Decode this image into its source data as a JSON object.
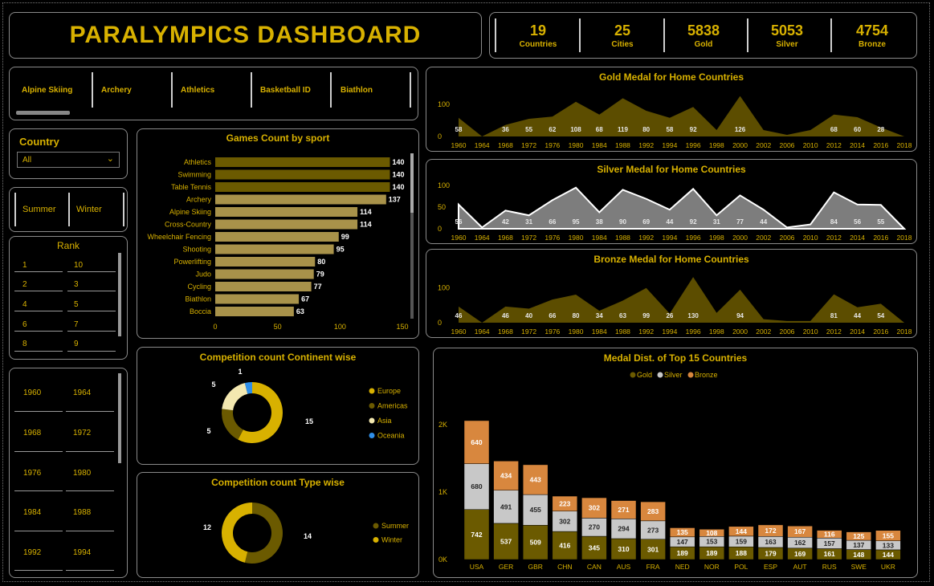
{
  "header": {
    "title": "PARALYMPICS DASHBOARD"
  },
  "kpis": [
    {
      "value": "19",
      "label": "Countries"
    },
    {
      "value": "25",
      "label": "Cities"
    },
    {
      "value": "5838",
      "label": "Gold"
    },
    {
      "value": "5053",
      "label": "Silver"
    },
    {
      "value": "4754",
      "label": "Bronze"
    }
  ],
  "sport_slicer": {
    "items": [
      "Alpine Skiing",
      "Archery",
      "Athletics",
      "Basketball ID",
      "Biathlon"
    ]
  },
  "country_filter": {
    "label": "Country",
    "selected": "All"
  },
  "season_slicer": {
    "items": [
      "Summer",
      "Winter"
    ]
  },
  "rank_slicer": {
    "title": "Rank",
    "items": [
      "1",
      "10",
      "2",
      "3",
      "4",
      "5",
      "6",
      "7",
      "8",
      "9"
    ]
  },
  "year_slicer": {
    "items": [
      "1960",
      "1964",
      "1968",
      "1972",
      "1976",
      "1980",
      "1984",
      "1988",
      "1992",
      "1994"
    ]
  },
  "colors": {
    "accent": "#d8b100",
    "gold_dark": "#6b5a00",
    "silver": "#c8c8c8",
    "bronze": "#d8873e",
    "oceania": "#2f8fe8",
    "asia": "#f3e8b0"
  },
  "chart_data": [
    {
      "id": "games_by_sport",
      "type": "bar",
      "orientation": "horizontal",
      "title": "Games Count by sport",
      "categories": [
        "Athletics",
        "Swimming",
        "Table Tennis",
        "Archery",
        "Alpine Skiing",
        "Cross-Country",
        "Wheelchair Fencing",
        "Shooting",
        "Powerlifting",
        "Judo",
        "Cycling",
        "Biathlon",
        "Boccia"
      ],
      "values": [
        140,
        140,
        140,
        137,
        114,
        114,
        99,
        95,
        80,
        79,
        77,
        67,
        63
      ],
      "xticks": [
        0,
        50,
        100,
        150
      ],
      "xlim": [
        0,
        150
      ]
    },
    {
      "id": "gold_home",
      "type": "area",
      "title": "Gold Medal for Home Countries",
      "x": [
        "1960",
        "1964",
        "1968",
        "1972",
        "1976",
        "1980",
        "1984",
        "1988",
        "1992",
        "1994",
        "1996",
        "1998",
        "2000",
        "2002",
        "2006",
        "2010",
        "2012",
        "2014",
        "2016",
        "2018"
      ],
      "values": [
        58,
        0,
        36,
        55,
        62,
        108,
        68,
        119,
        80,
        58,
        92,
        20,
        126,
        20,
        5,
        20,
        68,
        60,
        28,
        0
      ],
      "labels": [
        "58",
        "",
        "36",
        "55",
        "62",
        "108",
        "68",
        "119",
        "80",
        "58",
        "92",
        "",
        "126",
        "",
        "",
        "",
        "68",
        "60",
        "28",
        ""
      ],
      "yticks": [
        0,
        100
      ],
      "ylim": [
        0,
        135
      ]
    },
    {
      "id": "silver_home",
      "type": "area",
      "title": "Silver Medal for Home Countries",
      "x": [
        "1960",
        "1964",
        "1968",
        "1972",
        "1976",
        "1980",
        "1984",
        "1988",
        "1992",
        "1994",
        "1996",
        "1998",
        "2000",
        "2002",
        "2006",
        "2010",
        "2012",
        "2014",
        "2016",
        "2018"
      ],
      "values": [
        56,
        3,
        42,
        31,
        66,
        95,
        38,
        90,
        69,
        44,
        92,
        31,
        77,
        44,
        3,
        10,
        84,
        56,
        55,
        0
      ],
      "labels": [
        "56",
        "",
        "42",
        "31",
        "66",
        "95",
        "38",
        "90",
        "69",
        "44",
        "92",
        "31",
        "77",
        "44",
        "",
        "",
        "84",
        "56",
        "55",
        ""
      ],
      "yticks": [
        0,
        50,
        100
      ],
      "ylim": [
        0,
        100
      ]
    },
    {
      "id": "bronze_home",
      "type": "area",
      "title": "Bronze Medal for Home Countries",
      "x": [
        "1960",
        "1964",
        "1968",
        "1972",
        "1976",
        "1980",
        "1984",
        "1988",
        "1992",
        "1994",
        "1996",
        "1998",
        "2000",
        "2002",
        "2006",
        "2010",
        "2012",
        "2014",
        "2016",
        "2018"
      ],
      "values": [
        46,
        0,
        46,
        40,
        66,
        80,
        34,
        63,
        99,
        26,
        130,
        28,
        94,
        10,
        5,
        5,
        81,
        44,
        54,
        0
      ],
      "labels": [
        "46",
        "",
        "46",
        "40",
        "66",
        "80",
        "34",
        "63",
        "99",
        "26",
        "130",
        "",
        "94",
        "",
        "",
        "",
        "81",
        "44",
        "54",
        ""
      ],
      "yticks": [
        0,
        100
      ],
      "ylim": [
        0,
        135
      ]
    },
    {
      "id": "continent_donut",
      "type": "pie",
      "title": "Competition count Continent wise",
      "categories": [
        "Europe",
        "Americas",
        "Asia",
        "Oceania"
      ],
      "values": [
        15,
        5,
        5,
        1
      ],
      "colors": [
        "#d8b100",
        "#6b5a00",
        "#f3e8b0",
        "#2f8fe8"
      ]
    },
    {
      "id": "type_donut",
      "type": "pie",
      "title": "Competition count Type wise",
      "categories": [
        "Summer",
        "Winter"
      ],
      "values": [
        14,
        12
      ],
      "colors": [
        "#6b5a00",
        "#d8b100"
      ]
    },
    {
      "id": "medal_dist",
      "type": "bar",
      "stacked": true,
      "title": "Medal Dist. of Top 15 Countries",
      "categories": [
        "USA",
        "GER",
        "GBR",
        "CHN",
        "CAN",
        "AUS",
        "FRA",
        "NED",
        "NOR",
        "POL",
        "ESP",
        "AUT",
        "RUS",
        "SWE",
        "UKR"
      ],
      "series": [
        {
          "name": "Gold",
          "values": [
            742,
            537,
            509,
            416,
            345,
            310,
            301,
            189,
            189,
            188,
            179,
            169,
            161,
            148,
            144
          ]
        },
        {
          "name": "Silver",
          "values": [
            680,
            491,
            455,
            302,
            270,
            294,
            273,
            147,
            153,
            159,
            163,
            162,
            157,
            137,
            133
          ]
        },
        {
          "name": "Bronze",
          "values": [
            640,
            434,
            443,
            223,
            302,
            271,
            283,
            135,
            108,
            144,
            172,
            167,
            116,
            125,
            155
          ]
        }
      ],
      "yticks": [
        "0K",
        "1K",
        "2K"
      ],
      "ylim": [
        0,
        2300
      ]
    }
  ]
}
